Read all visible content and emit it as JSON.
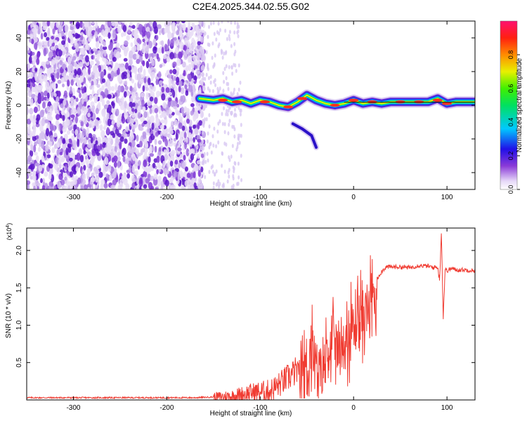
{
  "title": "C2E4.2025.344.02.55.G02",
  "chart_data": [
    {
      "type": "heatmap",
      "xlabel": "Height of straight line (km)",
      "ylabel": "Frequency (Hz)",
      "xlim": [
        -350,
        130
      ],
      "ylim": [
        -50,
        50
      ],
      "xticks": [
        -300,
        -200,
        -100,
        0,
        100
      ],
      "yticks": [
        -40,
        -20,
        0,
        20,
        40
      ],
      "colorbar": {
        "label": "Normalized spectral amplitude",
        "range": [
          0,
          1
        ],
        "ticks": [
          0.0,
          0.2,
          0.4,
          0.6,
          0.8
        ]
      },
      "ridge": {
        "x": [
          -165,
          -150,
          -140,
          -130,
          -120,
          -110,
          -100,
          -90,
          -80,
          -70,
          -60,
          -50,
          -40,
          -30,
          -20,
          -10,
          0,
          10,
          20,
          30,
          40,
          50,
          60,
          70,
          80,
          90,
          100,
          110,
          120,
          130
        ],
        "y": [
          4,
          3,
          4,
          2,
          3,
          1,
          3,
          2,
          0,
          -1,
          2,
          6,
          3,
          1,
          0,
          1,
          3,
          1,
          2,
          1,
          2,
          2,
          2,
          2,
          2,
          4,
          1,
          2,
          2,
          2
        ]
      },
      "branch": {
        "x": [
          -65,
          -55,
          -45,
          -40
        ],
        "y": [
          -11,
          -14,
          -18,
          -25
        ]
      }
    },
    {
      "type": "line",
      "xlabel": "Height of straight line (km)",
      "ylabel": "SNR (10 * v/v)",
      "y_multiplier": "(x10^4)",
      "xlim": [
        -350,
        130
      ],
      "ylim": [
        0,
        2.3
      ],
      "xticks": [
        -300,
        -200,
        -100,
        0,
        100
      ],
      "yticks": [
        0.5,
        1.0,
        1.5,
        2.0
      ],
      "color": "#f03c32",
      "series": [
        {
          "x": [
            -350,
            -300,
            -250,
            -200,
            -170,
            -150,
            -130,
            -110,
            -90,
            -80,
            -70,
            -60,
            -50,
            -45,
            -40,
            -35,
            -30,
            -25,
            -20,
            -15,
            -10,
            -5,
            0,
            5,
            10,
            15,
            20,
            25,
            30,
            35,
            40,
            50,
            60,
            70,
            80,
            85,
            90,
            92,
            94,
            96,
            98,
            100,
            105,
            110,
            120,
            130
          ],
          "y": [
            0.03,
            0.03,
            0.03,
            0.03,
            0.03,
            0.04,
            0.05,
            0.1,
            0.12,
            0.2,
            0.3,
            0.4,
            0.6,
            0.9,
            0.55,
            0.6,
            0.8,
            0.95,
            0.95,
            0.9,
            0.95,
            1.05,
            1.2,
            1.3,
            1.35,
            1.45,
            1.55,
            1.62,
            1.72,
            1.78,
            1.78,
            1.78,
            1.77,
            1.8,
            1.79,
            1.77,
            1.78,
            1.6,
            2.25,
            1.1,
            1.75,
            1.73,
            1.76,
            1.74,
            1.74,
            1.73
          ]
        }
      ]
    }
  ]
}
